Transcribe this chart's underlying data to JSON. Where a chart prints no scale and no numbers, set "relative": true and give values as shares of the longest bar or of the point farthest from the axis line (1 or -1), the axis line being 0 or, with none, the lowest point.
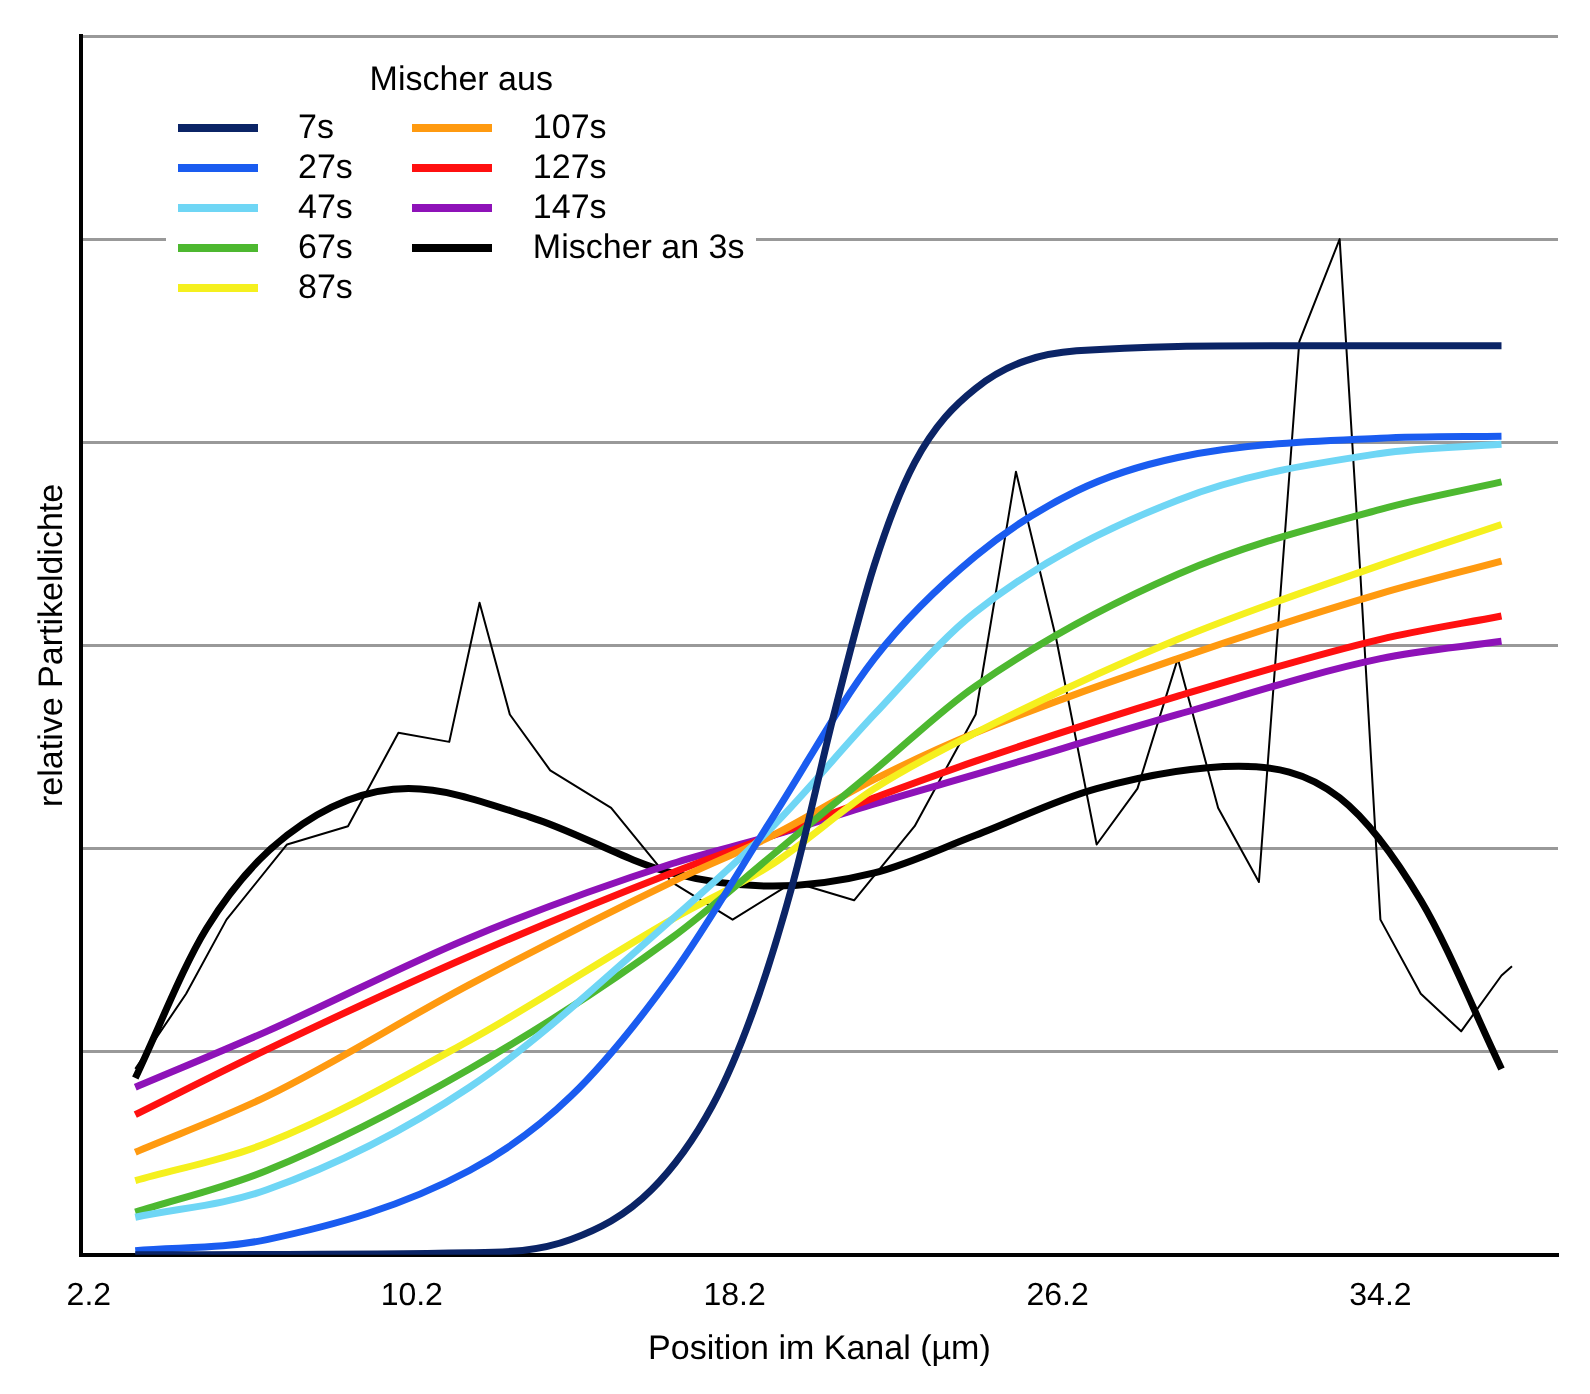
{
  "chart_data": {
    "type": "line",
    "xlabel": "Position im Kanal (µm)",
    "ylabel": "relative Partikeldichte",
    "legend_title": "Mischer aus",
    "legend": "top left",
    "relative": true,
    "grid": "y",
    "marker": "none",
    "line_style": "solid",
    "xlim": [
      2.0,
      38.6
    ],
    "xticks": [
      2.2,
      10.2,
      18.2,
      26.2,
      34.2
    ],
    "series": [
      {
        "name": "7s",
        "color": "#0b2466",
        "x": [
          3.35,
          11.63,
          14.14,
          16.14,
          17.65,
          18.65,
          19.65,
          20.66,
          21.66,
          22.66,
          24.17,
          26.67,
          31.69,
          37.2
        ],
        "values": [
          0,
          0.002,
          0.015,
          0.064,
          0.147,
          0.239,
          0.367,
          0.532,
          0.679,
          0.78,
          0.853,
          0.89,
          0.895,
          0.895
        ]
      },
      {
        "name": "27s",
        "color": "#1a5cf0",
        "x": [
          3.35,
          6.61,
          11.63,
          14.14,
          16.64,
          19.15,
          21.66,
          24.17,
          26.67,
          29.18,
          34.2,
          37.2
        ],
        "values": [
          0.004,
          0.015,
          0.083,
          0.156,
          0.275,
          0.431,
          0.587,
          0.688,
          0.752,
          0.785,
          0.804,
          0.806
        ]
      },
      {
        "name": "47s",
        "color": "#6fd6f5",
        "x": [
          3.35,
          6.61,
          11.63,
          16.64,
          19.15,
          21.66,
          24.17,
          29.18,
          34.2,
          37.2
        ],
        "values": [
          0.037,
          0.064,
          0.165,
          0.33,
          0.422,
          0.532,
          0.633,
          0.743,
          0.789,
          0.798
        ]
      },
      {
        "name": "67s",
        "color": "#4db830",
        "x": [
          3.35,
          6.61,
          11.63,
          16.64,
          19.15,
          21.66,
          24.17,
          29.18,
          34.2,
          37.2
        ],
        "values": [
          0.042,
          0.083,
          0.183,
          0.312,
          0.394,
          0.477,
          0.56,
          0.67,
          0.734,
          0.761
        ]
      },
      {
        "name": "87s",
        "color": "#f5f01e",
        "x": [
          3.35,
          6.61,
          11.63,
          16.64,
          19.15,
          21.66,
          24.17,
          29.18,
          34.2,
          37.2
        ],
        "values": [
          0.073,
          0.11,
          0.211,
          0.33,
          0.385,
          0.459,
          0.514,
          0.606,
          0.679,
          0.719
        ]
      },
      {
        "name": "107s",
        "color": "#ff9a10",
        "x": [
          3.35,
          6.61,
          11.63,
          16.64,
          19.15,
          21.66,
          24.17,
          29.18,
          34.2,
          37.2
        ],
        "values": [
          0.101,
          0.156,
          0.266,
          0.367,
          0.413,
          0.468,
          0.514,
          0.587,
          0.651,
          0.683
        ]
      },
      {
        "name": "127s",
        "color": "#ff1010",
        "x": [
          3.35,
          6.61,
          11.63,
          16.64,
          19.15,
          21.66,
          24.17,
          29.18,
          34.2,
          37.2
        ],
        "values": [
          0.138,
          0.202,
          0.294,
          0.376,
          0.413,
          0.45,
          0.486,
          0.55,
          0.606,
          0.629
        ]
      },
      {
        "name": "147s",
        "color": "#8e12b8",
        "x": [
          3.35,
          6.61,
          11.63,
          16.64,
          19.15,
          21.66,
          24.17,
          29.18,
          34.2,
          37.2
        ],
        "values": [
          0.165,
          0.22,
          0.312,
          0.385,
          0.413,
          0.444,
          0.473,
          0.532,
          0.587,
          0.604
        ]
      },
      {
        "color": "#000000",
        "x": [
          3.35,
          4.61,
          5.61,
          7.11,
          8.62,
          9.87,
          11.13,
          11.88,
          12.63,
          13.63,
          15.14,
          16.64,
          18.15,
          19.65,
          21.16,
          22.66,
          24.17,
          25.17,
          26.17,
          27.17,
          28.18,
          29.18,
          30.18,
          31.19,
          32.19,
          33.19,
          33.69,
          34.2,
          35.2,
          36.2,
          37.2,
          37.46
        ],
        "values": [
          0.183,
          0.257,
          0.33,
          0.404,
          0.422,
          0.514,
          0.505,
          0.642,
          0.532,
          0.477,
          0.44,
          0.367,
          0.33,
          0.367,
          0.349,
          0.422,
          0.532,
          0.771,
          0.606,
          0.404,
          0.459,
          0.587,
          0.44,
          0.367,
          0.899,
          1,
          0.679,
          0.33,
          0.257,
          0.22,
          0.275,
          0.284
        ]
      },
      {
        "name": "Mischer an 3s",
        "color": "#000000",
        "x": [
          3.35,
          5.11,
          7.11,
          10.12,
          13.13,
          16.64,
          19.15,
          21.66,
          24.17,
          27.17,
          30.69,
          33.19,
          35.2,
          37.2
        ],
        "values": [
          0.174,
          0.321,
          0.413,
          0.459,
          0.431,
          0.376,
          0.363,
          0.376,
          0.413,
          0.459,
          0.481,
          0.45,
          0.349,
          0.183
        ]
      }
    ]
  }
}
